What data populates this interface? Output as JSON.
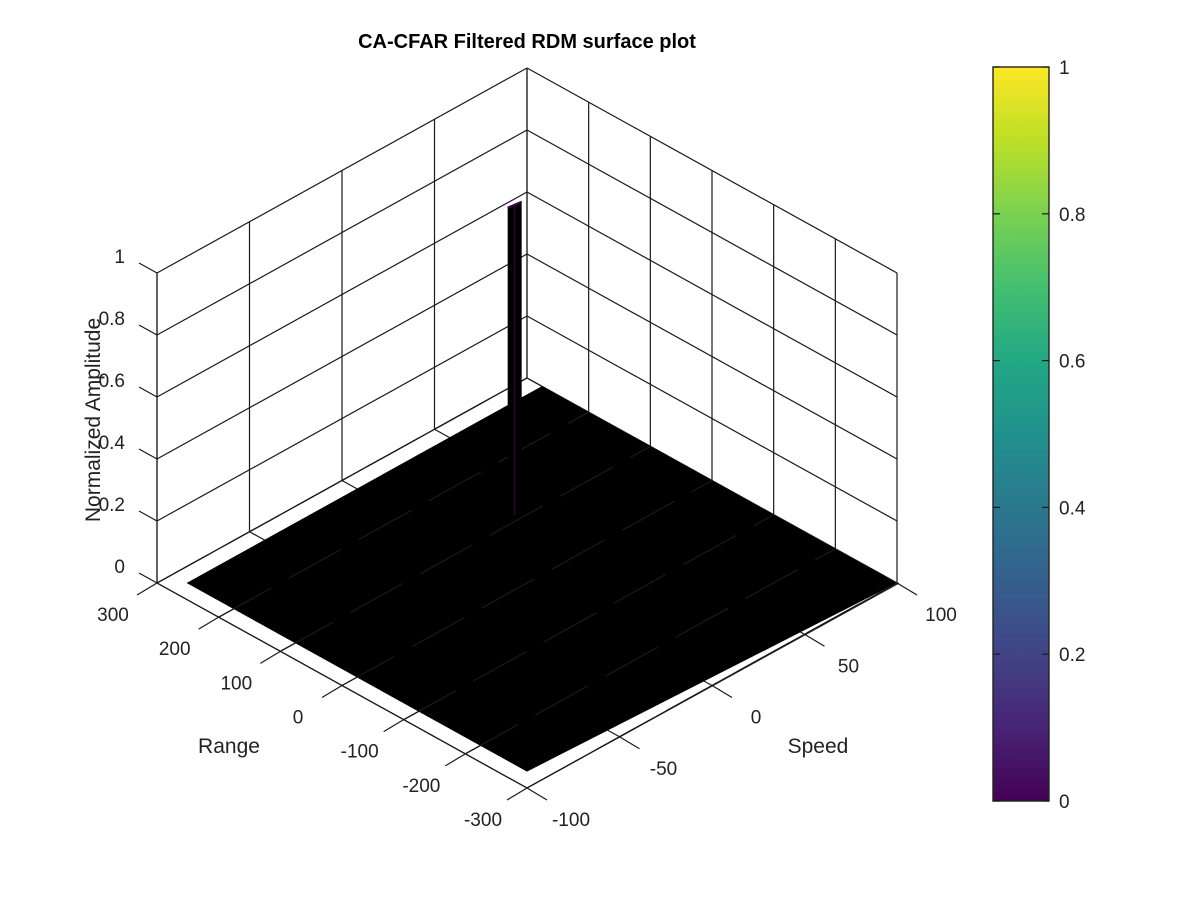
{
  "chart_data": {
    "type": "surface",
    "title": "CA-CFAR Filtered RDM surface plot",
    "xlabel": "Range",
    "ylabel": "Speed",
    "zlabel": "Normalized Amplitude",
    "x_range": [
      -300,
      300
    ],
    "y_range": [
      -100,
      100
    ],
    "z_range": [
      0,
      1
    ],
    "x_ticks": [
      300,
      200,
      100,
      0,
      -100,
      -200,
      -300
    ],
    "y_ticks": [
      100,
      50,
      0,
      -50,
      -100
    ],
    "z_ticks": [
      0,
      0.2,
      0.4,
      0.6,
      0.8,
      1
    ],
    "x_tick_labels": [
      "300",
      "200",
      "100",
      "0",
      "-100",
      "-200",
      "-300"
    ],
    "y_tick_labels": [
      "100",
      "50",
      "0",
      "-50",
      "-100"
    ],
    "z_tick_labels": [
      "0",
      "0.2",
      "0.4",
      "0.6",
      "0.8",
      "1"
    ],
    "grid": true,
    "colormap": "viridis",
    "colorbar": {
      "range": [
        0,
        1
      ],
      "ticks": [
        0,
        0.2,
        0.4,
        0.6,
        0.8,
        1
      ],
      "tick_labels": [
        "0",
        "0.2",
        "0.4",
        "0.6",
        "0.8",
        "1"
      ],
      "placement": "right"
    },
    "surface": {
      "baseline_value": 0,
      "peaks": [
        {
          "range": 110,
          "speed": 30,
          "value": 1
        }
      ]
    },
    "colors": {
      "surface": "#000000",
      "peak": "#440154",
      "colorbar_low": "#440154",
      "colorbar_high": "#fde725"
    }
  }
}
